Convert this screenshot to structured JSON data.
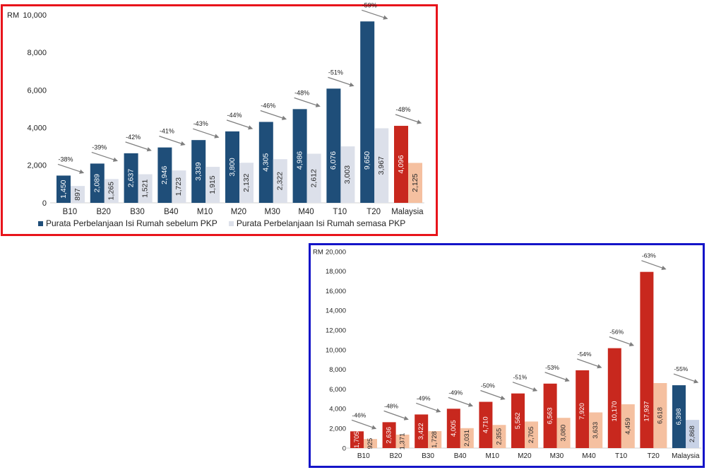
{
  "colors": {
    "top_before": "#1f4e79",
    "top_during": "#dce0ea",
    "top_malaysia_before": "#c8281e",
    "top_malaysia_during": "#f5c0a0",
    "bottom_before": "#c8281e",
    "bottom_during": "#f5c0a0",
    "bottom_malaysia_before": "#1f4e79",
    "bottom_malaysia_during": "#c8d2e6",
    "arrow": "#7f7f7f"
  },
  "chart_data": [
    {
      "type": "bar",
      "yunit": "RM",
      "ylim": [
        0,
        10000
      ],
      "yticks": [
        "0",
        "2,000",
        "4,000",
        "6,000",
        "8,000",
        "10,000"
      ],
      "ytick_values": [
        0,
        2000,
        4000,
        6000,
        8000,
        10000
      ],
      "categories": [
        "B10",
        "B20",
        "B30",
        "B40",
        "M10",
        "M20",
        "M30",
        "M40",
        "T10",
        "T20",
        "Malaysia"
      ],
      "series": [
        {
          "name": "Purata Perbelanjaan Isi Rumah sebelum PKP",
          "values": [
            1450,
            2089,
            2637,
            2946,
            3339,
            3800,
            4305,
            4986,
            6076,
            9650,
            4096
          ],
          "labels": [
            "1,450",
            "2,089",
            "2,637",
            "2,946",
            "3,339",
            "3,800",
            "4,305",
            "4,986",
            "6,076",
            "9,650",
            "4,096"
          ]
        },
        {
          "name": "Purata Perbelanjaan Isi Rumah semasa PKP",
          "values": [
            897,
            1265,
            1521,
            1723,
            1915,
            2132,
            2322,
            2612,
            3003,
            3967,
            2125
          ],
          "labels": [
            "897",
            "1,265",
            "1,521",
            "1,723",
            "1,915",
            "2,132",
            "2,322",
            "2,612",
            "3,003",
            "3,967",
            "2,125"
          ]
        }
      ],
      "changes": [
        "-38%",
        "-39%",
        "-42%",
        "-41%",
        "-43%",
        "-44%",
        "-46%",
        "-48%",
        "-51%",
        "-59%",
        "-48%"
      ],
      "legend": "bottom",
      "grid": false
    },
    {
      "type": "bar",
      "yunit": "RM",
      "ylim": [
        0,
        20000
      ],
      "yticks": [
        "0",
        "2,000",
        "4,000",
        "6,000",
        "8,000",
        "10,000",
        "12,000",
        "14,000",
        "16,000",
        "18,000",
        "20,000"
      ],
      "ytick_values": [
        0,
        2000,
        4000,
        6000,
        8000,
        10000,
        12000,
        14000,
        16000,
        18000,
        20000
      ],
      "categories": [
        "B10",
        "B20",
        "B30",
        "B40",
        "M10",
        "M20",
        "M30",
        "M40",
        "T10",
        "T20",
        "Malaysia"
      ],
      "series": [
        {
          "values": [
            1705,
            2636,
            3422,
            4005,
            4710,
            5562,
            6563,
            7920,
            10170,
            17937,
            6398
          ],
          "labels": [
            "1,705",
            "2,636",
            "3,422",
            "4,005",
            "4,710",
            "5,562",
            "6,563",
            "7,920",
            "10,170",
            "17,937",
            "6,398"
          ]
        },
        {
          "values": [
            925,
            1371,
            1728,
            2031,
            2355,
            2705,
            3080,
            3633,
            4459,
            6618,
            2868
          ],
          "labels": [
            "925",
            "1,371",
            "1,728",
            "2,031",
            "2,355",
            "2,705",
            "3,080",
            "3,633",
            "4,459",
            "6,618",
            "2,868"
          ]
        }
      ],
      "changes": [
        "-46%",
        "-48%",
        "-49%",
        "-49%",
        "-50%",
        "-51%",
        "-53%",
        "-54%",
        "-56%",
        "-63%",
        "-55%"
      ],
      "legend": "none",
      "grid": false
    }
  ]
}
